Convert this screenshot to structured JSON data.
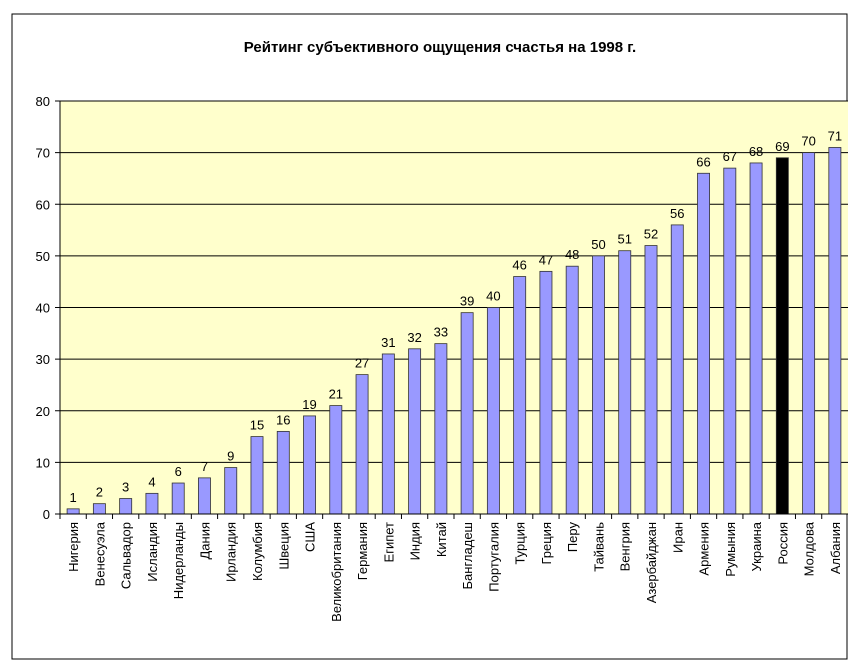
{
  "chart_data": {
    "type": "bar",
    "title": "Рейтинг субъективного ощущения счастья на 1998 г.",
    "categories": [
      "Нигерия",
      "Венесуэла",
      "Сальвадор",
      "Исландия",
      "Нидерланды",
      "Дания",
      "Ирландия",
      "Колумбия",
      "Швеция",
      "США",
      "Великобритания",
      "Германия",
      "Египет",
      "Индия",
      "Китай",
      "Бангладеш",
      "Португалия",
      "Турция",
      "Греция",
      "Перу",
      "Тайвань",
      "Венгрия",
      "Азербайджан",
      "Иран",
      "Армения",
      "Румыния",
      "Украина",
      "Россия",
      "Молдова",
      "Албания"
    ],
    "values": [
      1,
      2,
      3,
      4,
      6,
      7,
      9,
      15,
      16,
      19,
      21,
      27,
      31,
      32,
      33,
      39,
      40,
      46,
      47,
      48,
      50,
      51,
      52,
      56,
      66,
      67,
      68,
      69,
      70,
      71
    ],
    "colors": [
      "#9999ff",
      "#9999ff",
      "#9999ff",
      "#9999ff",
      "#9999ff",
      "#9999ff",
      "#9999ff",
      "#9999ff",
      "#9999ff",
      "#9999ff",
      "#9999ff",
      "#9999ff",
      "#9999ff",
      "#9999ff",
      "#9999ff",
      "#9999ff",
      "#9999ff",
      "#9999ff",
      "#9999ff",
      "#9999ff",
      "#9999ff",
      "#9999ff",
      "#9999ff",
      "#9999ff",
      "#9999ff",
      "#9999ff",
      "#9999ff",
      "#000000",
      "#9999ff",
      "#9999ff"
    ],
    "ylim": [
      0,
      80
    ],
    "yticks": [
      0,
      10,
      20,
      30,
      40,
      50,
      60,
      70,
      80
    ],
    "grid": true
  }
}
